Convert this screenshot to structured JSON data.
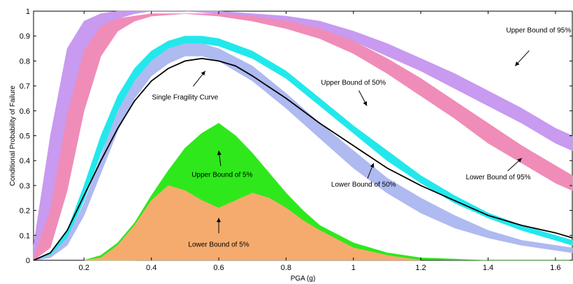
{
  "chart_data": {
    "type": "line",
    "xlabel": "PGA (g)",
    "ylabel": "Conditional Probability of Failure",
    "xlim": [
      0.05,
      1.65
    ],
    "ylim": [
      0,
      1
    ],
    "xticks": [
      "0.2",
      "0.4",
      "0.6",
      "0.8",
      "1",
      "1.2",
      "1.4",
      "1.6"
    ],
    "yticks": [
      "0",
      "0.1",
      "0.2",
      "0.3",
      "0.4",
      "0.5",
      "0.6",
      "0.7",
      "0.8",
      "0.9",
      "1"
    ],
    "grid": false,
    "bands": [
      {
        "color": "#c89af0",
        "x": [
          0.05,
          0.1,
          0.15,
          0.2,
          0.25,
          0.3,
          0.35,
          0.4,
          0.5,
          0.6,
          0.7,
          0.8,
          0.9,
          1.0,
          1.1,
          1.2,
          1.3,
          1.4,
          1.5,
          1.6,
          1.65
        ],
        "upper": [
          0.06,
          0.5,
          0.85,
          0.96,
          0.99,
          1.0,
          1.0,
          1.0,
          1.0,
          1.0,
          0.99,
          0.98,
          0.96,
          0.92,
          0.87,
          0.81,
          0.75,
          0.68,
          0.61,
          0.53,
          0.5
        ],
        "lower": [
          0.01,
          0.1,
          0.42,
          0.74,
          0.9,
          0.97,
          0.99,
          1.0,
          1.0,
          0.99,
          0.98,
          0.96,
          0.93,
          0.88,
          0.82,
          0.76,
          0.69,
          0.62,
          0.55,
          0.47,
          0.44
        ]
      },
      {
        "color": "#f08cb8",
        "x": [
          0.05,
          0.1,
          0.15,
          0.2,
          0.25,
          0.3,
          0.35,
          0.4,
          0.5,
          0.6,
          0.7,
          0.8,
          0.9,
          1.0,
          1.1,
          1.2,
          1.3,
          1.4,
          1.5,
          1.6,
          1.65
        ],
        "upper": [
          0.01,
          0.2,
          0.58,
          0.84,
          0.94,
          0.97,
          0.98,
          0.99,
          0.99,
          0.99,
          0.98,
          0.96,
          0.93,
          0.88,
          0.81,
          0.73,
          0.64,
          0.55,
          0.46,
          0.38,
          0.34
        ],
        "lower": [
          0.0,
          0.05,
          0.28,
          0.6,
          0.82,
          0.92,
          0.96,
          0.98,
          0.99,
          0.98,
          0.96,
          0.93,
          0.89,
          0.83,
          0.75,
          0.66,
          0.57,
          0.47,
          0.39,
          0.31,
          0.28
        ]
      },
      {
        "color": "#22e8ec",
        "x": [
          0.05,
          0.1,
          0.15,
          0.2,
          0.25,
          0.3,
          0.35,
          0.4,
          0.45,
          0.5,
          0.55,
          0.6,
          0.7,
          0.8,
          0.9,
          1.0,
          1.1,
          1.2,
          1.3,
          1.4,
          1.5,
          1.6,
          1.65
        ],
        "upper": [
          0.0,
          0.03,
          0.12,
          0.3,
          0.5,
          0.66,
          0.77,
          0.84,
          0.88,
          0.9,
          0.9,
          0.89,
          0.84,
          0.76,
          0.65,
          0.54,
          0.44,
          0.34,
          0.26,
          0.19,
          0.14,
          0.1,
          0.08
        ],
        "lower": [
          0.0,
          0.02,
          0.09,
          0.24,
          0.43,
          0.59,
          0.71,
          0.79,
          0.84,
          0.86,
          0.87,
          0.86,
          0.81,
          0.73,
          0.62,
          0.51,
          0.4,
          0.31,
          0.23,
          0.17,
          0.12,
          0.08,
          0.06
        ]
      },
      {
        "color": "#aebaf0",
        "x": [
          0.05,
          0.1,
          0.15,
          0.2,
          0.25,
          0.3,
          0.35,
          0.4,
          0.45,
          0.5,
          0.55,
          0.6,
          0.7,
          0.8,
          0.9,
          1.0,
          1.1,
          1.2,
          1.3,
          1.4,
          1.5,
          1.6,
          1.65
        ],
        "upper": [
          0.0,
          0.02,
          0.09,
          0.23,
          0.42,
          0.6,
          0.72,
          0.8,
          0.85,
          0.87,
          0.87,
          0.85,
          0.78,
          0.67,
          0.55,
          0.44,
          0.33,
          0.25,
          0.18,
          0.12,
          0.08,
          0.06,
          0.05
        ],
        "lower": [
          0.0,
          0.01,
          0.06,
          0.18,
          0.35,
          0.52,
          0.65,
          0.74,
          0.79,
          0.82,
          0.82,
          0.8,
          0.72,
          0.61,
          0.49,
          0.37,
          0.27,
          0.19,
          0.13,
          0.09,
          0.06,
          0.04,
          0.03
        ]
      },
      {
        "color": "#2ee81c",
        "x": [
          0.2,
          0.25,
          0.3,
          0.35,
          0.4,
          0.45,
          0.5,
          0.55,
          0.6,
          0.65,
          0.7,
          0.75,
          0.8,
          0.85,
          0.9,
          1.0,
          1.1,
          1.2,
          1.3,
          1.4,
          1.5,
          1.6,
          1.65
        ],
        "upper": [
          0.0,
          0.02,
          0.07,
          0.15,
          0.26,
          0.36,
          0.45,
          0.51,
          0.55,
          0.5,
          0.43,
          0.35,
          0.27,
          0.2,
          0.14,
          0.07,
          0.03,
          0.01,
          0.005,
          0.0,
          0.0,
          0.0,
          0.0
        ],
        "lower": [
          0.0,
          0.0,
          0.0,
          0.0,
          0.01,
          0.02,
          0.03,
          0.05,
          0.07,
          0.06,
          0.05,
          0.04,
          0.03,
          0.02,
          0.015,
          0.008,
          0.004,
          0.002,
          0.001,
          0.0,
          0.0,
          0.0,
          0.0
        ]
      },
      {
        "color": "#f5ab6e",
        "x": [
          0.2,
          0.25,
          0.3,
          0.35,
          0.4,
          0.45,
          0.5,
          0.55,
          0.6,
          0.65,
          0.7,
          0.75,
          0.8,
          0.85,
          0.9,
          1.0,
          1.1,
          1.2
        ],
        "upper": [
          0.0,
          0.01,
          0.06,
          0.14,
          0.24,
          0.3,
          0.28,
          0.24,
          0.21,
          0.24,
          0.27,
          0.25,
          0.21,
          0.16,
          0.12,
          0.05,
          0.02,
          0.0
        ],
        "lower": [
          0.0,
          0.0,
          0.0,
          0.0,
          0.0,
          0.0,
          0.0,
          0.0,
          0.0,
          0.0,
          0.0,
          0.0,
          0.0,
          0.0,
          0.0,
          0.0,
          0.0,
          0.0
        ]
      }
    ],
    "series": [
      {
        "color": "#000000",
        "x": [
          0.05,
          0.1,
          0.15,
          0.2,
          0.25,
          0.3,
          0.35,
          0.4,
          0.45,
          0.5,
          0.55,
          0.6,
          0.65,
          0.7,
          0.8,
          0.9,
          1.0,
          1.1,
          1.2,
          1.3,
          1.4,
          1.5,
          1.6,
          1.65
        ],
        "values": [
          0.0,
          0.03,
          0.12,
          0.26,
          0.4,
          0.53,
          0.64,
          0.72,
          0.77,
          0.8,
          0.81,
          0.8,
          0.78,
          0.74,
          0.65,
          0.55,
          0.46,
          0.37,
          0.3,
          0.24,
          0.18,
          0.14,
          0.11,
          0.09
        ]
      }
    ],
    "annotations": [
      {
        "text": "Upper Bound of 95%",
        "x": 1.55,
        "y": 0.915,
        "arrow_to": [
          1.48,
          0.78
        ]
      },
      {
        "text": "Upper Bound of 50%",
        "x": 1.0,
        "y": 0.705,
        "arrow_to": [
          1.04,
          0.62
        ]
      },
      {
        "text": "Single Fragility Curve",
        "x": 0.5,
        "y": 0.645,
        "arrow_to": [
          0.56,
          0.76
        ]
      },
      {
        "text": "Lower Bound of 50%",
        "x": 1.03,
        "y": 0.295,
        "arrow_to": [
          1.06,
          0.39
        ]
      },
      {
        "text": "Lower Bound of 95%",
        "x": 1.43,
        "y": 0.325,
        "arrow_to": [
          1.5,
          0.41
        ]
      },
      {
        "text": "Upper Bound of 5%",
        "x": 0.61,
        "y": 0.335,
        "arrow_to": [
          0.6,
          0.44
        ]
      },
      {
        "text": "Lower Bound of 5%",
        "x": 0.6,
        "y": 0.055,
        "arrow_to": [
          0.6,
          0.17
        ]
      }
    ]
  }
}
